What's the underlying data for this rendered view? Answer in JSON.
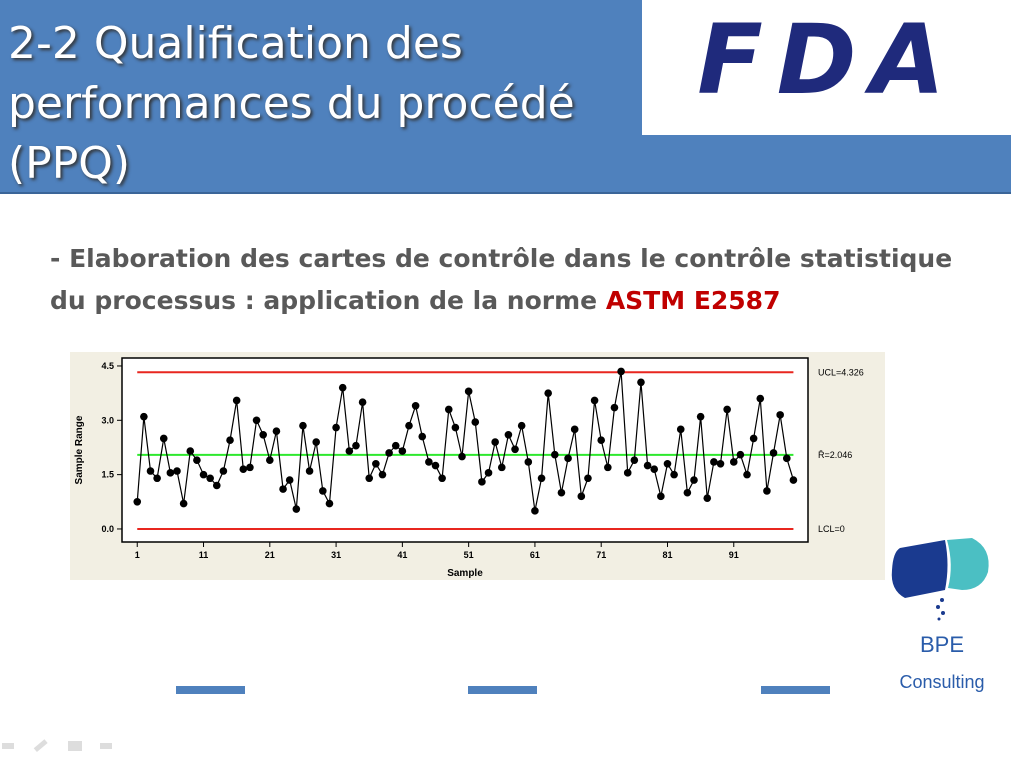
{
  "header": {
    "title": "2-2 Qualification des performances du procédé (PPQ)"
  },
  "logo": {
    "text": "FDA"
  },
  "body": {
    "text": "- Elaboration des cartes de contrôle dans le contrôle statistique du processus : application de la norme",
    "highlight": "ASTM E2587"
  },
  "brand": {
    "name": "BPE",
    "tagline": "Consulting"
  },
  "chart_data": {
    "type": "line",
    "xlabel": "Sample",
    "ylabel": "Sample Range",
    "x": [
      1,
      2,
      3,
      4,
      5,
      6,
      7,
      8,
      9,
      10,
      11,
      12,
      13,
      14,
      15,
      16,
      17,
      18,
      19,
      20,
      21,
      22,
      23,
      24,
      25,
      26,
      27,
      28,
      29,
      30,
      31,
      32,
      33,
      34,
      35,
      36,
      37,
      38,
      39,
      40,
      41,
      42,
      43,
      44,
      45,
      46,
      47,
      48,
      49,
      50,
      51,
      52,
      53,
      54,
      55,
      56,
      57,
      58,
      59,
      60,
      61,
      62,
      63,
      64,
      65,
      66,
      67,
      68,
      69,
      70,
      71,
      72,
      73,
      74,
      75,
      76,
      77,
      78,
      79,
      80,
      81,
      82,
      83,
      84,
      85,
      86,
      87,
      88,
      89,
      90,
      91,
      92,
      93,
      94,
      95,
      96,
      97,
      98,
      99,
      100
    ],
    "series": [
      {
        "name": "Sample Range",
        "color": "#000000",
        "values": [
          0.75,
          3.1,
          1.6,
          1.4,
          2.5,
          1.55,
          1.6,
          0.7,
          2.15,
          1.9,
          1.5,
          1.4,
          1.2,
          1.6,
          2.45,
          3.55,
          1.65,
          1.7,
          3.0,
          2.6,
          1.9,
          2.7,
          1.1,
          1.35,
          0.55,
          2.85,
          1.6,
          2.4,
          1.05,
          0.7,
          2.8,
          3.9,
          2.15,
          2.3,
          3.5,
          1.4,
          1.8,
          1.5,
          2.1,
          2.3,
          2.15,
          2.85,
          3.4,
          2.55,
          1.85,
          1.75,
          1.4,
          3.3,
          2.8,
          2.0,
          3.8,
          2.95,
          1.3,
          1.55,
          2.4,
          1.7,
          2.6,
          2.2,
          2.85,
          1.85,
          0.5,
          1.4,
          3.75,
          2.05,
          1.0,
          1.95,
          2.75,
          0.9,
          1.4,
          3.55,
          2.45,
          1.7,
          3.35,
          4.35,
          1.55,
          1.9,
          4.05,
          1.75,
          1.65,
          0.9,
          1.8,
          1.5,
          2.75,
          1.0,
          1.35,
          3.1,
          0.85,
          1.85,
          1.8,
          3.3,
          1.85,
          2.05,
          1.5,
          2.5,
          3.6,
          1.05,
          2.1,
          3.15,
          1.95,
          1.35
        ]
      }
    ],
    "reference_lines": [
      {
        "label": "UCL=4.326",
        "value": 4.326,
        "color": "#e8261f"
      },
      {
        "label": "R̄=2.046",
        "value": 2.046,
        "color": "#2ee82e"
      },
      {
        "label": "LCL=0",
        "value": 0,
        "color": "#e8261f"
      }
    ],
    "xlim": [
      -1.3,
      102.2
    ],
    "ylim": [
      -0.36,
      4.72
    ],
    "xticks": [
      1,
      11,
      21,
      31,
      41,
      51,
      61,
      71,
      81,
      91
    ],
    "yticks": [
      {
        "value": 0,
        "label": "0.0"
      },
      1.5,
      {
        "value": 3,
        "label": "3.0"
      },
      {
        "value": 4.5,
        "label": "4.5"
      }
    ]
  }
}
